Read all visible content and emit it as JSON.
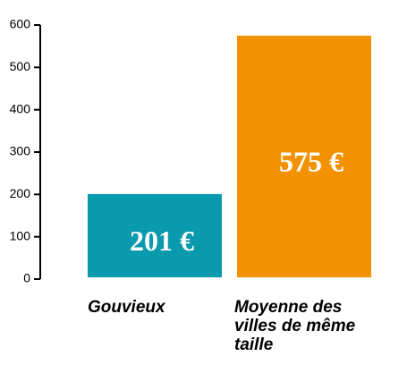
{
  "chart_data": {
    "type": "bar",
    "categories": [
      "Gouvieux",
      "Moyenne des villes de même taille"
    ],
    "values": [
      201,
      575
    ],
    "value_labels": [
      "201 €",
      "575 €"
    ],
    "colors": [
      "#0a9aad",
      "#f39200"
    ],
    "ylim": [
      0,
      600
    ],
    "yticks": [
      0,
      100,
      200,
      300,
      400,
      500,
      600
    ]
  }
}
